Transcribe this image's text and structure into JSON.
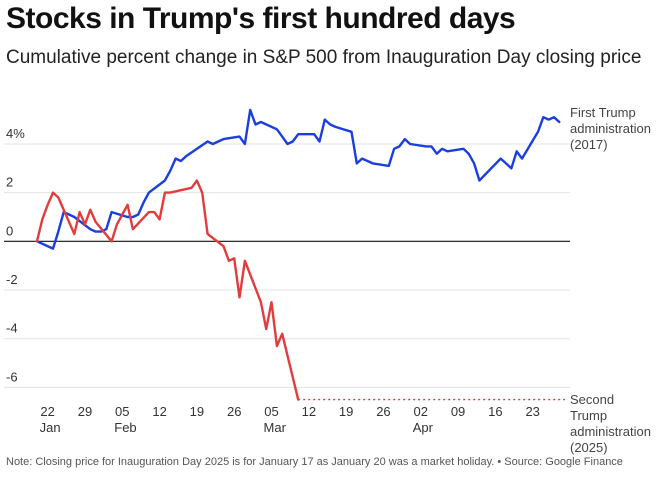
{
  "title": "Stocks in Trump's first hundred days",
  "subtitle": "Cumulative percent change in S&P 500 from Inauguration Day closing price",
  "note": "Note: Closing price for Inauguration Day 2025 is for January 17 as January 20 was a market holiday. • Source: Google Finance",
  "colors": {
    "first": "#1a3ee0",
    "second": "#e23c3c",
    "grid": "#e3e3e3",
    "zero": "#111111"
  },
  "chart_data": {
    "type": "line",
    "xlabel": "",
    "ylabel": "",
    "ylim": [
      -6.6,
      5.6
    ],
    "xlim": [
      "01-20",
      "04-30"
    ],
    "y_ticks": [
      {
        "value": -6,
        "label": "-6"
      },
      {
        "value": -4,
        "label": "-4"
      },
      {
        "value": -2,
        "label": "-2"
      },
      {
        "value": 0,
        "label": "0"
      },
      {
        "value": 2,
        "label": "2"
      },
      {
        "value": 4,
        "label": "4%"
      }
    ],
    "x_ticks": [
      {
        "date": "01-22",
        "label": "22"
      },
      {
        "date": "01-29",
        "label": "29"
      },
      {
        "date": "02-05",
        "label": "05"
      },
      {
        "date": "02-12",
        "label": "12"
      },
      {
        "date": "02-19",
        "label": "19"
      },
      {
        "date": "02-26",
        "label": "26"
      },
      {
        "date": "03-05",
        "label": "05"
      },
      {
        "date": "03-12",
        "label": "12"
      },
      {
        "date": "03-19",
        "label": "19"
      },
      {
        "date": "03-26",
        "label": "26"
      },
      {
        "date": "04-02",
        "label": "02"
      },
      {
        "date": "04-09",
        "label": "09"
      },
      {
        "date": "04-16",
        "label": "16"
      },
      {
        "date": "04-23",
        "label": "23"
      }
    ],
    "months": [
      {
        "date": "01-22",
        "label": "Jan"
      },
      {
        "date": "02-05",
        "label": "Feb"
      },
      {
        "date": "03-05",
        "label": "Mar"
      },
      {
        "date": "04-02",
        "label": "Apr"
      }
    ],
    "series": [
      {
        "name": "First Trump administration (2017)",
        "label_lines": [
          "First Trump",
          "administration",
          "(2017)"
        ],
        "color": "#1a3ee0",
        "points": [
          [
            "01-20",
            0
          ],
          [
            "01-23",
            -0.3
          ],
          [
            "01-24",
            0.4
          ],
          [
            "01-25",
            1.2
          ],
          [
            "01-26",
            1.1
          ],
          [
            "01-27",
            1.0
          ],
          [
            "01-30",
            0.5
          ],
          [
            "01-31",
            0.4
          ],
          [
            "02-01",
            0.4
          ],
          [
            "02-02",
            0.5
          ],
          [
            "02-03",
            1.2
          ],
          [
            "02-06",
            1.0
          ],
          [
            "02-07",
            1.0
          ],
          [
            "02-08",
            1.1
          ],
          [
            "02-09",
            1.6
          ],
          [
            "02-10",
            2.0
          ],
          [
            "02-13",
            2.5
          ],
          [
            "02-14",
            2.9
          ],
          [
            "02-15",
            3.4
          ],
          [
            "02-16",
            3.3
          ],
          [
            "02-17",
            3.5
          ],
          [
            "02-21",
            4.1
          ],
          [
            "02-22",
            4.0
          ],
          [
            "02-23",
            4.1
          ],
          [
            "02-24",
            4.2
          ],
          [
            "02-27",
            4.3
          ],
          [
            "02-28",
            4.0
          ],
          [
            "03-01",
            5.4
          ],
          [
            "03-02",
            4.8
          ],
          [
            "03-03",
            4.9
          ],
          [
            "03-06",
            4.6
          ],
          [
            "03-07",
            4.3
          ],
          [
            "03-08",
            4.0
          ],
          [
            "03-09",
            4.1
          ],
          [
            "03-10",
            4.4
          ],
          [
            "03-13",
            4.4
          ],
          [
            "03-14",
            4.1
          ],
          [
            "03-15",
            5.0
          ],
          [
            "03-16",
            4.8
          ],
          [
            "03-17",
            4.7
          ],
          [
            "03-20",
            4.5
          ],
          [
            "03-21",
            3.2
          ],
          [
            "03-22",
            3.4
          ],
          [
            "03-23",
            3.3
          ],
          [
            "03-24",
            3.2
          ],
          [
            "03-27",
            3.1
          ],
          [
            "03-28",
            3.8
          ],
          [
            "03-29",
            3.9
          ],
          [
            "03-30",
            4.2
          ],
          [
            "03-31",
            4.0
          ],
          [
            "04-03",
            3.9
          ],
          [
            "04-04",
            3.9
          ],
          [
            "04-05",
            3.6
          ],
          [
            "04-06",
            3.8
          ],
          [
            "04-07",
            3.7
          ],
          [
            "04-10",
            3.8
          ],
          [
            "04-11",
            3.6
          ],
          [
            "04-12",
            3.2
          ],
          [
            "04-13",
            2.5
          ],
          [
            "04-17",
            3.4
          ],
          [
            "04-18",
            3.2
          ],
          [
            "04-19",
            3.0
          ],
          [
            "04-20",
            3.7
          ],
          [
            "04-21",
            3.4
          ],
          [
            "04-24",
            4.5
          ],
          [
            "04-25",
            5.1
          ],
          [
            "04-26",
            5.0
          ],
          [
            "04-27",
            5.1
          ],
          [
            "04-28",
            4.9
          ]
        ]
      },
      {
        "name": "Second Trump administration (2025)",
        "label_lines": [
          "Second",
          "Trump",
          "administration",
          "(2025)"
        ],
        "color": "#e23c3c",
        "points": [
          [
            "01-20",
            0
          ],
          [
            "01-21",
            0.9
          ],
          [
            "01-22",
            1.5
          ],
          [
            "01-23",
            2.0
          ],
          [
            "01-24",
            1.8
          ],
          [
            "01-27",
            0.3
          ],
          [
            "01-28",
            1.2
          ],
          [
            "01-29",
            0.7
          ],
          [
            "01-30",
            1.3
          ],
          [
            "01-31",
            0.8
          ],
          [
            "02-03",
            0.0
          ],
          [
            "02-04",
            0.7
          ],
          [
            "02-05",
            1.1
          ],
          [
            "02-06",
            1.5
          ],
          [
            "02-07",
            0.5
          ],
          [
            "02-10",
            1.2
          ],
          [
            "02-11",
            1.2
          ],
          [
            "02-12",
            0.9
          ],
          [
            "02-13",
            2.0
          ],
          [
            "02-14",
            2.0
          ],
          [
            "02-18",
            2.2
          ],
          [
            "02-19",
            2.5
          ],
          [
            "02-20",
            2.0
          ],
          [
            "02-21",
            0.3
          ],
          [
            "02-24",
            -0.2
          ],
          [
            "02-25",
            -0.8
          ],
          [
            "02-26",
            -0.7
          ],
          [
            "02-27",
            -2.3
          ],
          [
            "02-28",
            -0.8
          ],
          [
            "03-03",
            -2.5
          ],
          [
            "03-04",
            -3.6
          ],
          [
            "03-05",
            -2.5
          ],
          [
            "03-06",
            -4.3
          ],
          [
            "03-07",
            -3.8
          ],
          [
            "03-10",
            -6.5
          ]
        ]
      }
    ]
  }
}
